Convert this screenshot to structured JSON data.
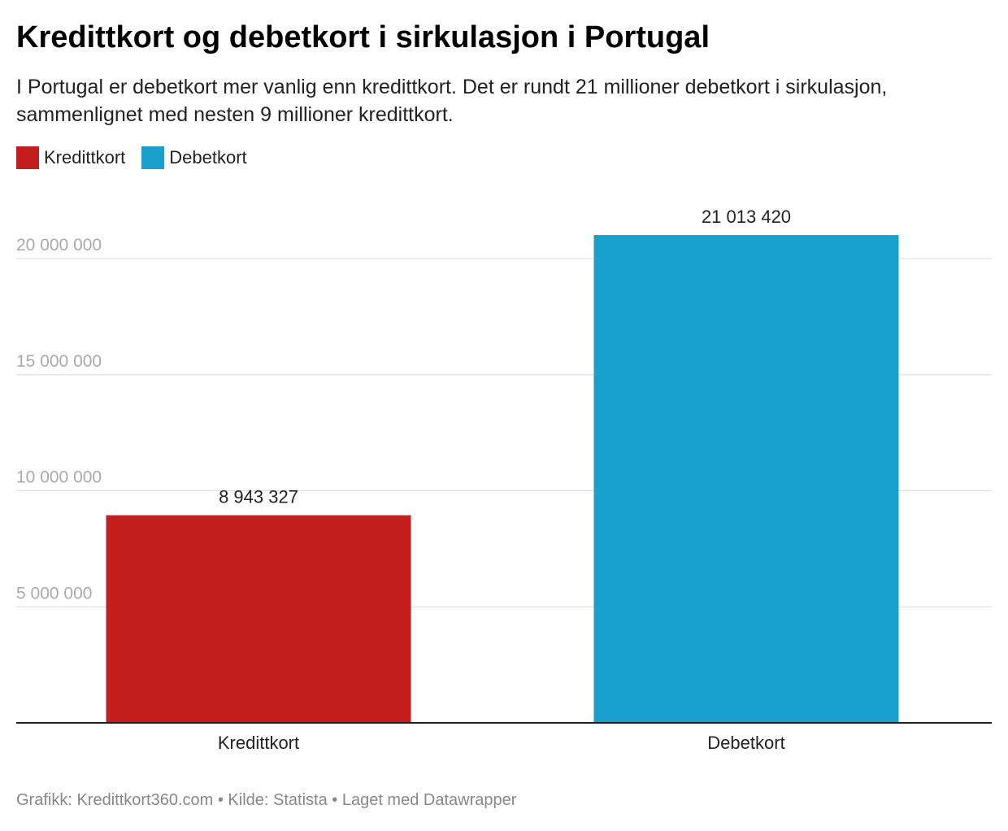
{
  "title": "Kredittkort og debetkort i sirkulasjon i Portugal",
  "subtitle": "I Portugal er debetkort mer vanlig enn kredittkort. Det er rundt 21 millioner debetkort i sirkulasjon, sammenlignet med nesten 9 millioner kredittkort.",
  "footer": "Grafikk: Kredittkort360.com • Kilde: Statista • Laget med Datawrapper",
  "chart_data": {
    "type": "bar",
    "title": "Kredittkort og debetkort i sirkulasjon i Portugal",
    "categories": [
      "Kredittkort",
      "Debetkort"
    ],
    "values": [
      8943327,
      21013420
    ],
    "value_labels": [
      "8 943 327",
      "21 013 420"
    ],
    "colors": [
      "#c41e1e",
      "#19a0cc"
    ],
    "legend": [
      {
        "label": "Kredittkort",
        "color": "#c41e1e"
      },
      {
        "label": "Debetkort",
        "color": "#19a0cc"
      }
    ],
    "legend_position": "top-left",
    "xlabel": "",
    "ylabel": "",
    "ylim": [
      0,
      22000000
    ],
    "yticks": [
      5000000,
      10000000,
      15000000,
      20000000
    ],
    "ytick_labels": [
      "5 000 000",
      "10 000 000",
      "15 000 000",
      "20 000 000"
    ],
    "grid": true
  }
}
